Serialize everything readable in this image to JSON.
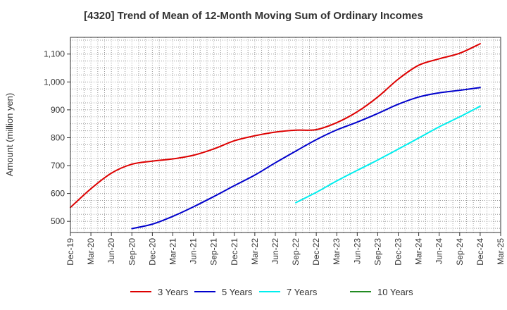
{
  "chart_data": {
    "type": "line",
    "title": "[4320]  Trend of Mean of 12-Month Moving Sum of Ordinary Incomes",
    "xlabel": "",
    "ylabel": "Amount (million yen)",
    "ylim": [
      460,
      1160
    ],
    "yticks": [
      500,
      600,
      700,
      800,
      900,
      1000,
      1100
    ],
    "ytick_labels": [
      "500",
      "600",
      "700",
      "800",
      "900",
      "1,000",
      "1,100"
    ],
    "categories": [
      "Dec-19",
      "Mar-20",
      "Jun-20",
      "Sep-20",
      "Dec-20",
      "Mar-21",
      "Jun-21",
      "Sep-21",
      "Dec-21",
      "Mar-22",
      "Jun-22",
      "Sep-22",
      "Dec-22",
      "Mar-23",
      "Jun-23",
      "Sep-23",
      "Dec-23",
      "Mar-24",
      "Jun-24",
      "Sep-24",
      "Dec-24",
      "Mar-25"
    ],
    "grid": true,
    "legend_position": "bottom",
    "series": [
      {
        "name": "3 Years",
        "color": "#dd0000",
        "values": [
          550,
          617,
          673,
          705,
          716,
          724,
          737,
          760,
          789,
          807,
          820,
          827,
          829,
          854,
          893,
          946,
          1010,
          1060,
          1083,
          1103,
          1137,
          null
        ]
      },
      {
        "name": "5 Years",
        "color": "#0000cc",
        "values": [
          null,
          null,
          null,
          474,
          490,
          518,
          552,
          589,
          628,
          666,
          710,
          752,
          793,
          828,
          856,
          887,
          920,
          946,
          961,
          970,
          980,
          null
        ]
      },
      {
        "name": "7 Years",
        "color": "#00eeee",
        "values": [
          null,
          null,
          null,
          null,
          null,
          null,
          null,
          null,
          null,
          null,
          null,
          567,
          604,
          645,
          683,
          720,
          759,
          799,
          839,
          875,
          913,
          null
        ]
      },
      {
        "name": "10 Years",
        "color": "#228b22",
        "values": [
          null,
          null,
          null,
          null,
          null,
          null,
          null,
          null,
          null,
          null,
          null,
          null,
          null,
          null,
          null,
          null,
          null,
          null,
          null,
          null,
          null,
          null
        ]
      }
    ]
  }
}
